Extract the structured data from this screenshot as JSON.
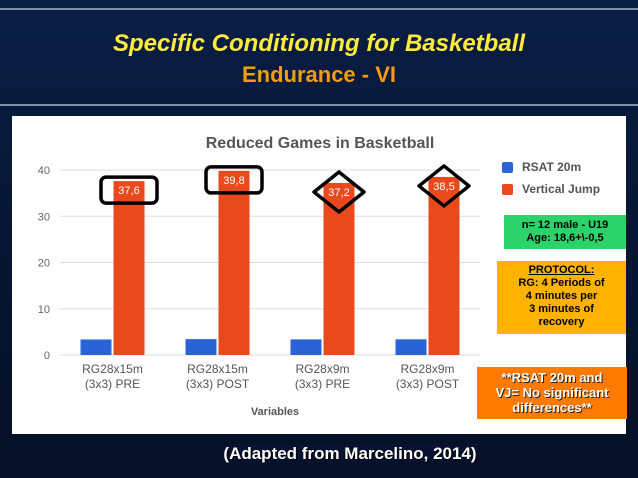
{
  "slide": {
    "title": "Specific Conditioning for Basketball",
    "subtitle": "Endurance - VI",
    "source": "(Adapted from Marcelino, 2014)"
  },
  "chart_data": {
    "type": "bar",
    "title": "Reduced Games in Basketball",
    "xlabel": "Variables",
    "ylabel": "",
    "ylim": [
      0,
      40
    ],
    "yticks": [
      0,
      10,
      20,
      30,
      40
    ],
    "grid": true,
    "legend": "right",
    "categories": [
      [
        "RG28x15m",
        "(3x3) PRE"
      ],
      [
        "RG28x15m",
        "(3x3) POST"
      ],
      [
        "RG28x9m",
        "(3x3) PRE"
      ],
      [
        "RG28x9m",
        "(3x3) POST"
      ]
    ],
    "series": [
      {
        "name": "RSAT 20m",
        "color": "#2a63d6",
        "values": [
          3.36,
          3.43,
          3.37,
          3.39
        ],
        "labels": [
          "3,36",
          "3,43",
          "3,37",
          "3,39"
        ]
      },
      {
        "name": "Vertical Jump",
        "color": "#e84a1d",
        "values": [
          37.6,
          39.8,
          37.2,
          38.5
        ],
        "labels": [
          "37,6",
          "39,8",
          "37,2",
          "38,5"
        ]
      }
    ],
    "highlight_shapes": [
      "rounded-rect",
      "rounded-rect",
      "diamond",
      "diamond"
    ]
  },
  "info_box": {
    "lines": [
      "n= 12 male - U19",
      "Age: 18,6+\\-0,5"
    ],
    "color": "#2bd36a"
  },
  "protocol_box": {
    "heading": "PROTOCOL:",
    "lines": [
      "RG: 4 Periods of",
      "4 minutes per",
      "3 minutes of",
      "recovery"
    ],
    "color": "#ffb300"
  },
  "note_box": {
    "lines": [
      "**RSAT 20m and",
      "VJ= No significant",
      "differences**"
    ],
    "color": "#ff7a00"
  }
}
